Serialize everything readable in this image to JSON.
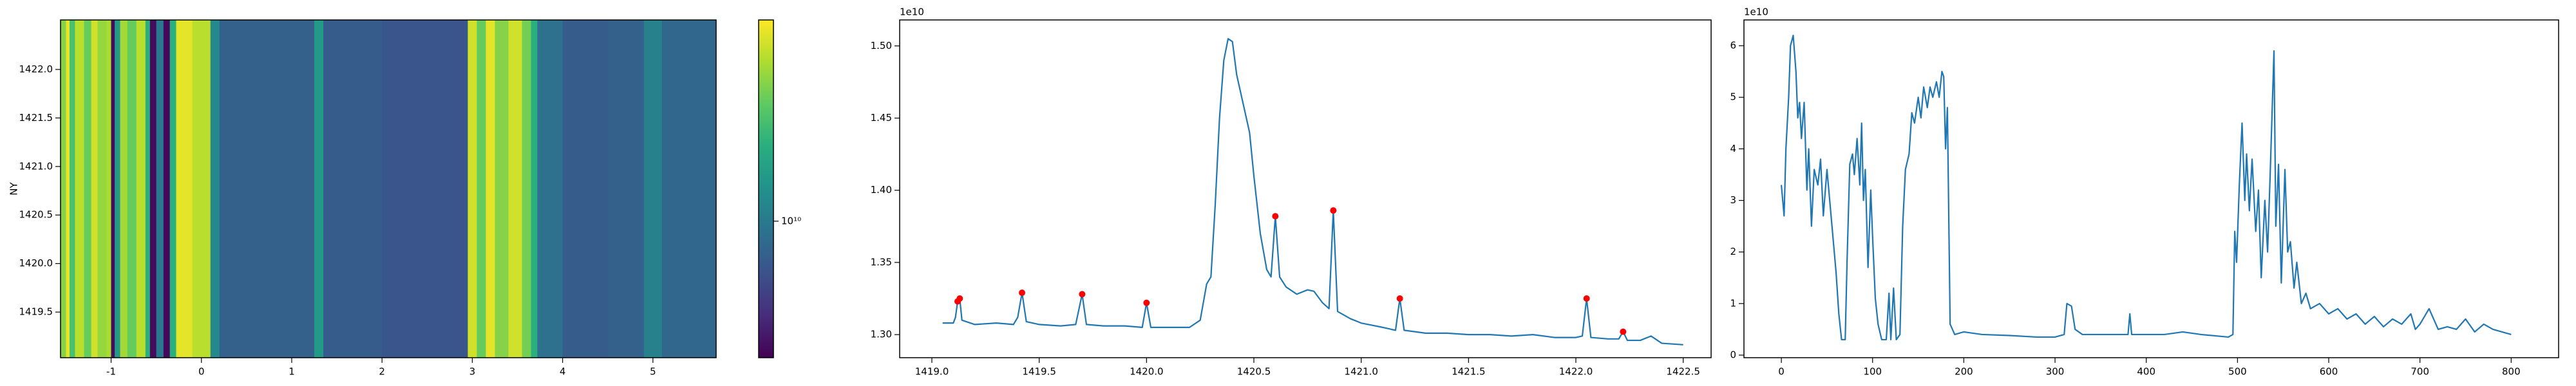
{
  "chart_data": [
    {
      "type": "heatmap",
      "ylabel": "NY",
      "colormap": "viridis",
      "log_color": true,
      "x_edges": [
        -1.56,
        -1.5,
        -1.46,
        -1.4,
        -1.3,
        -1.22,
        -1.15,
        -1.05,
        -1.0,
        -0.96,
        -0.9,
        -0.82,
        -0.72,
        -0.62,
        -0.57,
        -0.5,
        -0.42,
        -0.35,
        -0.28,
        -0.1,
        0.1,
        0.2,
        1.25,
        1.35,
        2.0,
        2.95,
        3.05,
        3.15,
        3.25,
        3.4,
        3.55,
        3.65,
        3.72,
        4.0,
        4.5,
        4.9,
        5.1,
        5.7
      ],
      "values": [
        35000000000,
        55000000000,
        25000000000,
        45000000000,
        30000000000,
        50000000000,
        38000000000,
        42000000000,
        3200000000,
        15000000000,
        40000000000,
        30000000000,
        45000000000,
        20000000000,
        3200000000,
        10000000000,
        3100000000,
        20000000000,
        55000000000,
        45000000000,
        12000000000,
        7500000000,
        15000000000,
        7000000000,
        6500000000,
        50000000000,
        30000000000,
        55000000000,
        35000000000,
        50000000000,
        32000000000,
        20000000000,
        9000000000,
        7000000000,
        7500000000,
        11000000000,
        8000000000
      ],
      "xlim": [
        -1.56,
        5.7
      ],
      "ylim": [
        1419.03,
        1422.51
      ],
      "xticks": [
        -1,
        0,
        1,
        2,
        3,
        4,
        5
      ],
      "yticks": [
        {
          "value": 1419.5,
          "label": "1419.5"
        },
        {
          "value": 1420.0,
          "label": "1420.0"
        },
        {
          "value": 1420.5,
          "label": "1420.5"
        },
        {
          "value": 1421.0,
          "label": "1421.0"
        },
        {
          "value": 1421.5,
          "label": "1421.5"
        },
        {
          "value": 1422.0,
          "label": "1422.0"
        }
      ],
      "clim": [
        2900000000,
        62000000000
      ],
      "cticks": [
        {
          "value": 10000000000,
          "label": "10¹⁰"
        }
      ]
    },
    {
      "type": "line",
      "offset_text": "1e10",
      "xlim": [
        1418.85,
        1422.63
      ],
      "ylim": [
        1.284,
        1.518
      ],
      "xticks": [
        {
          "value": 1419.0,
          "label": "1419.0"
        },
        {
          "value": 1419.5,
          "label": "1419.5"
        },
        {
          "value": 1420.0,
          "label": "1420.0"
        },
        {
          "value": 1420.5,
          "label": "1420.5"
        },
        {
          "value": 1421.0,
          "label": "1421.0"
        },
        {
          "value": 1421.5,
          "label": "1421.5"
        },
        {
          "value": 1422.0,
          "label": "1422.0"
        },
        {
          "value": 1422.5,
          "label": "1422.5"
        }
      ],
      "yticks": [
        {
          "value": 1.3,
          "label": "1.30"
        },
        {
          "value": 1.35,
          "label": "1.35"
        },
        {
          "value": 1.4,
          "label": "1.40"
        },
        {
          "value": 1.45,
          "label": "1.45"
        },
        {
          "value": 1.5,
          "label": "1.50"
        }
      ],
      "series": [
        {
          "type": "line",
          "color": "#1f77b4",
          "x": [
            1419.05,
            1419.1,
            1419.11,
            1419.12,
            1419.13,
            1419.14,
            1419.2,
            1419.3,
            1419.38,
            1419.4,
            1419.42,
            1419.44,
            1419.5,
            1419.6,
            1419.67,
            1419.7,
            1419.72,
            1419.8,
            1419.9,
            1419.98,
            1420.0,
            1420.02,
            1420.1,
            1420.2,
            1420.25,
            1420.28,
            1420.3,
            1420.32,
            1420.34,
            1420.36,
            1420.38,
            1420.4,
            1420.42,
            1420.45,
            1420.48,
            1420.5,
            1420.53,
            1420.56,
            1420.58,
            1420.6,
            1420.62,
            1420.65,
            1420.7,
            1420.75,
            1420.78,
            1420.82,
            1420.85,
            1420.87,
            1420.89,
            1420.95,
            1421.0,
            1421.1,
            1421.16,
            1421.18,
            1421.2,
            1421.3,
            1421.4,
            1421.5,
            1421.6,
            1421.7,
            1421.8,
            1421.9,
            1422.0,
            1422.03,
            1422.05,
            1422.07,
            1422.15,
            1422.2,
            1422.22,
            1422.24,
            1422.3,
            1422.35,
            1422.4,
            1422.5
          ],
          "values": [
            1.308,
            1.308,
            1.312,
            1.323,
            1.325,
            1.31,
            1.307,
            1.308,
            1.307,
            1.312,
            1.329,
            1.309,
            1.307,
            1.306,
            1.307,
            1.328,
            1.307,
            1.306,
            1.306,
            1.305,
            1.322,
            1.305,
            1.305,
            1.305,
            1.31,
            1.335,
            1.34,
            1.39,
            1.45,
            1.49,
            1.505,
            1.503,
            1.48,
            1.46,
            1.44,
            1.41,
            1.37,
            1.345,
            1.34,
            1.382,
            1.34,
            1.333,
            1.328,
            1.331,
            1.33,
            1.322,
            1.318,
            1.386,
            1.316,
            1.311,
            1.308,
            1.305,
            1.303,
            1.325,
            1.303,
            1.301,
            1.301,
            1.3,
            1.3,
            1.299,
            1.3,
            1.298,
            1.298,
            1.299,
            1.325,
            1.298,
            1.297,
            1.297,
            1.302,
            1.296,
            1.296,
            1.299,
            1.294,
            1.293
          ]
        },
        {
          "type": "scatter",
          "color": "#ff0000",
          "x": [
            1419.12,
            1419.13,
            1419.42,
            1419.7,
            1420.0,
            1420.6,
            1420.87,
            1421.18,
            1422.05,
            1422.22
          ],
          "values": [
            1.323,
            1.325,
            1.329,
            1.328,
            1.322,
            1.382,
            1.386,
            1.325,
            1.325,
            1.302
          ]
        }
      ]
    },
    {
      "type": "line",
      "offset_text": "1e10",
      "xlim": [
        -41,
        852
      ],
      "ylim": [
        -0.05,
        6.5
      ],
      "xticks": [
        0,
        100,
        200,
        300,
        400,
        500,
        600,
        700,
        800
      ],
      "yticks": [
        0,
        1,
        2,
        3,
        4,
        5,
        6
      ],
      "series": [
        {
          "type": "line",
          "color": "#1f77b4",
          "x": [
            0,
            3,
            5,
            8,
            10,
            13,
            16,
            18,
            20,
            22,
            25,
            28,
            30,
            33,
            36,
            40,
            43,
            46,
            50,
            53,
            56,
            60,
            63,
            66,
            70,
            72,
            75,
            78,
            80,
            83,
            86,
            88,
            90,
            92,
            95,
            98,
            100,
            103,
            106,
            110,
            115,
            118,
            120,
            123,
            126,
            130,
            133,
            136,
            140,
            143,
            146,
            150,
            153,
            156,
            160,
            163,
            166,
            170,
            173,
            176,
            178,
            180,
            182,
            185,
            190,
            200,
            220,
            250,
            280,
            300,
            310,
            313,
            318,
            322,
            330,
            350,
            380,
            382,
            384,
            420,
            440,
            460,
            490,
            495,
            497,
            499,
            502,
            505,
            508,
            510,
            513,
            516,
            520,
            523,
            526,
            530,
            533,
            536,
            540,
            542,
            545,
            548,
            552,
            555,
            558,
            562,
            565,
            570,
            575,
            580,
            590,
            600,
            610,
            620,
            630,
            640,
            650,
            660,
            670,
            680,
            690,
            695,
            700,
            710,
            720,
            730,
            740,
            750,
            760,
            770,
            780,
            790,
            800
          ],
          "values": [
            3.3,
            2.7,
            4.0,
            5.0,
            6.0,
            6.2,
            5.5,
            4.6,
            4.9,
            4.2,
            4.9,
            3.2,
            4.0,
            2.5,
            3.6,
            3.3,
            3.8,
            2.7,
            3.6,
            3.0,
            2.4,
            1.6,
            0.8,
            0.3,
            0.3,
            1.8,
            3.7,
            3.9,
            3.5,
            4.2,
            3.3,
            4.5,
            3.0,
            3.6,
            1.7,
            3.2,
            2.3,
            1.1,
            0.6,
            0.3,
            0.3,
            1.2,
            0.3,
            1.3,
            0.3,
            0.4,
            2.5,
            3.6,
            3.9,
            4.7,
            4.5,
            5.0,
            4.6,
            5.2,
            4.8,
            5.2,
            5.0,
            5.3,
            5.0,
            5.5,
            5.4,
            4.0,
            4.8,
            0.6,
            0.4,
            0.45,
            0.4,
            0.38,
            0.35,
            0.35,
            0.4,
            1.0,
            0.95,
            0.5,
            0.4,
            0.4,
            0.4,
            0.8,
            0.4,
            0.4,
            0.45,
            0.4,
            0.35,
            0.4,
            2.4,
            1.8,
            3.3,
            4.5,
            3.0,
            3.9,
            2.8,
            3.8,
            2.4,
            3.2,
            1.5,
            3.0,
            2.0,
            3.6,
            5.9,
            2.5,
            3.7,
            1.4,
            3.6,
            2.0,
            2.2,
            1.3,
            1.8,
            1.0,
            1.2,
            0.9,
            1.0,
            0.8,
            0.9,
            0.7,
            0.8,
            0.6,
            0.75,
            0.55,
            0.7,
            0.6,
            0.8,
            0.5,
            0.6,
            0.9,
            0.5,
            0.55,
            0.5,
            0.7,
            0.45,
            0.6,
            0.5,
            0.45,
            0.4
          ]
        }
      ]
    }
  ]
}
